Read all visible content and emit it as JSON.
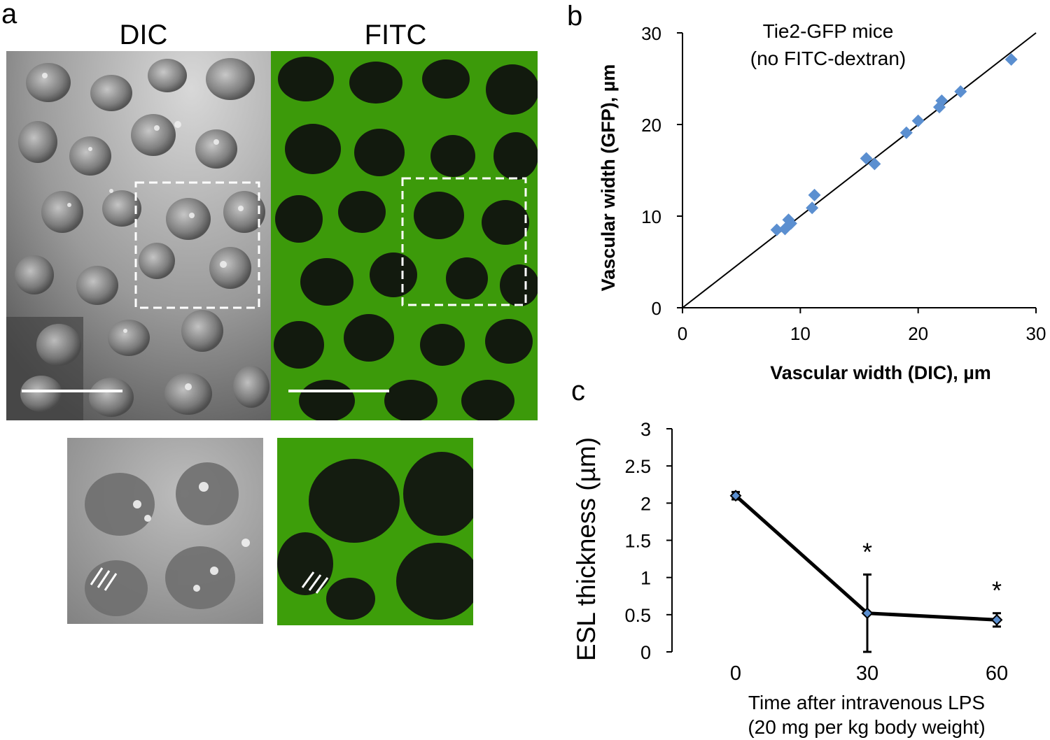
{
  "panel_a": {
    "letter": "a",
    "labels": {
      "dic": "DIC",
      "fitc": "FITC"
    },
    "colors": {
      "dic_gray": "#9a9a9a",
      "fitc_green": "#3fa600",
      "dark": "#101410"
    }
  },
  "chart_data": [
    {
      "panel": "b",
      "type": "scatter",
      "annotation": [
        "Tie2-GFP mice",
        "(no FITC-dextran)"
      ],
      "xlabel": "Vascular width (DIC), µm",
      "ylabel": "Vascular width (GFP), µm",
      "xlim": [
        0,
        30
      ],
      "ylim": [
        0,
        30
      ],
      "xticks": [
        0,
        10,
        20,
        30
      ],
      "yticks": [
        0,
        10,
        20,
        30
      ],
      "grid": false,
      "marker_color": "#5b8fd0",
      "fit_line": {
        "x": [
          0,
          30
        ],
        "y": [
          0,
          30
        ]
      },
      "x": [
        8.0,
        8.7,
        9.0,
        9.2,
        11.0,
        11.2,
        15.6,
        16.3,
        19.0,
        20.0,
        21.8,
        22.0,
        23.6,
        27.9
      ],
      "y": [
        8.5,
        8.6,
        9.6,
        9.2,
        10.9,
        12.3,
        16.3,
        15.7,
        19.1,
        20.4,
        21.9,
        22.6,
        23.6,
        27.1
      ]
    },
    {
      "panel": "c",
      "type": "line",
      "x": [
        0,
        30,
        60
      ],
      "categories": [
        "0",
        "30",
        "60"
      ],
      "values": [
        2.1,
        0.52,
        0.43
      ],
      "errors": [
        0.05,
        0.52,
        0.09
      ],
      "significance": [
        "",
        "*",
        "*"
      ],
      "ylabel": "ESL thickness (µm)",
      "xlabel": [
        "Time after intravenous LPS",
        "(20 mg per kg body weight)"
      ],
      "ylim": [
        0,
        3
      ],
      "yticks": [
        "0",
        "0.5",
        "1",
        "1.5",
        "2",
        "2.5",
        "3"
      ],
      "grid": false
    }
  ]
}
